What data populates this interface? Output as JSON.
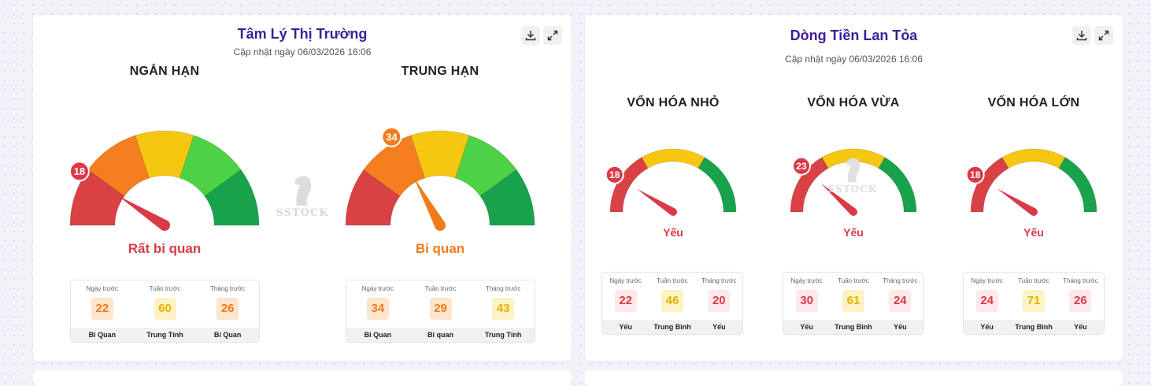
{
  "card1": {
    "title": "Tâm Lý Thị Trường",
    "updated": "Cập nhật ngày 06/03/2026 16:06",
    "gauges": [
      {
        "title": "NGẮN HẠN",
        "value": 18,
        "status": "Rất bi quan",
        "status_color": "#d93a46",
        "history": [
          {
            "label": "Ngày trước",
            "value": "22",
            "tag": "Bi Quan",
            "tone": "orange"
          },
          {
            "label": "Tuần trước",
            "value": "60",
            "tag": "Trung Tính",
            "tone": "yellow"
          },
          {
            "label": "Tháng trước",
            "value": "26",
            "tag": "Bi Quan",
            "tone": "orange"
          }
        ]
      },
      {
        "title": "TRUNG HẠN",
        "value": 34,
        "status": "Bi quan",
        "status_color": "#f07c1c",
        "history": [
          {
            "label": "Ngày trước",
            "value": "34",
            "tag": "Bi Quan",
            "tone": "orange"
          },
          {
            "label": "Tuần trước",
            "value": "29",
            "tag": "Bi quan",
            "tone": "orange"
          },
          {
            "label": "Tháng trước",
            "value": "43",
            "tag": "Trung Tính",
            "tone": "yellow"
          }
        ]
      }
    ]
  },
  "card2": {
    "title": "Dòng Tiền Lan Tỏa",
    "updated": "Cập nhật ngày 06/03/2026 16:06",
    "gauges": [
      {
        "title": "VỐN HÓA NHỎ",
        "value": 18,
        "status": "Yếu",
        "status_color": "#d93a46",
        "history": [
          {
            "label": "Ngày trước",
            "value": "22",
            "tag": "Yếu",
            "tone": "red"
          },
          {
            "label": "Tuần trước",
            "value": "46",
            "tag": "Trung Bình",
            "tone": "yellow"
          },
          {
            "label": "Tháng trước",
            "value": "20",
            "tag": "Yếu",
            "tone": "red"
          }
        ]
      },
      {
        "title": "VỐN HÓA VỪA",
        "value": 23,
        "status": "Yếu",
        "status_color": "#d93a46",
        "history": [
          {
            "label": "Ngày trước",
            "value": "30",
            "tag": "Yếu",
            "tone": "red"
          },
          {
            "label": "Tuần trước",
            "value": "61",
            "tag": "Trung Bình",
            "tone": "yellow"
          },
          {
            "label": "Tháng trước",
            "value": "24",
            "tag": "Yếu",
            "tone": "red"
          }
        ]
      },
      {
        "title": "VỐN HÓA LỚN",
        "value": 18,
        "status": "Yếu",
        "status_color": "#d93a46",
        "history": [
          {
            "label": "Ngày trước",
            "value": "24",
            "tag": "Yếu",
            "tone": "red"
          },
          {
            "label": "Tuần trước",
            "value": "71",
            "tag": "Trung Bình",
            "tone": "yellow"
          },
          {
            "label": "Tháng trước",
            "value": "26",
            "tag": "Yếu",
            "tone": "red"
          }
        ]
      }
    ]
  },
  "watermark": "SSTOCK",
  "icons": {
    "download": "download-icon",
    "expand": "expand-icon"
  },
  "palette5": [
    "#d94144",
    "#f57f1f",
    "#f5c710",
    "#4cd244",
    "#17a24b"
  ],
  "palette3": [
    "#d94144",
    "#f5c710",
    "#17a24b"
  ]
}
